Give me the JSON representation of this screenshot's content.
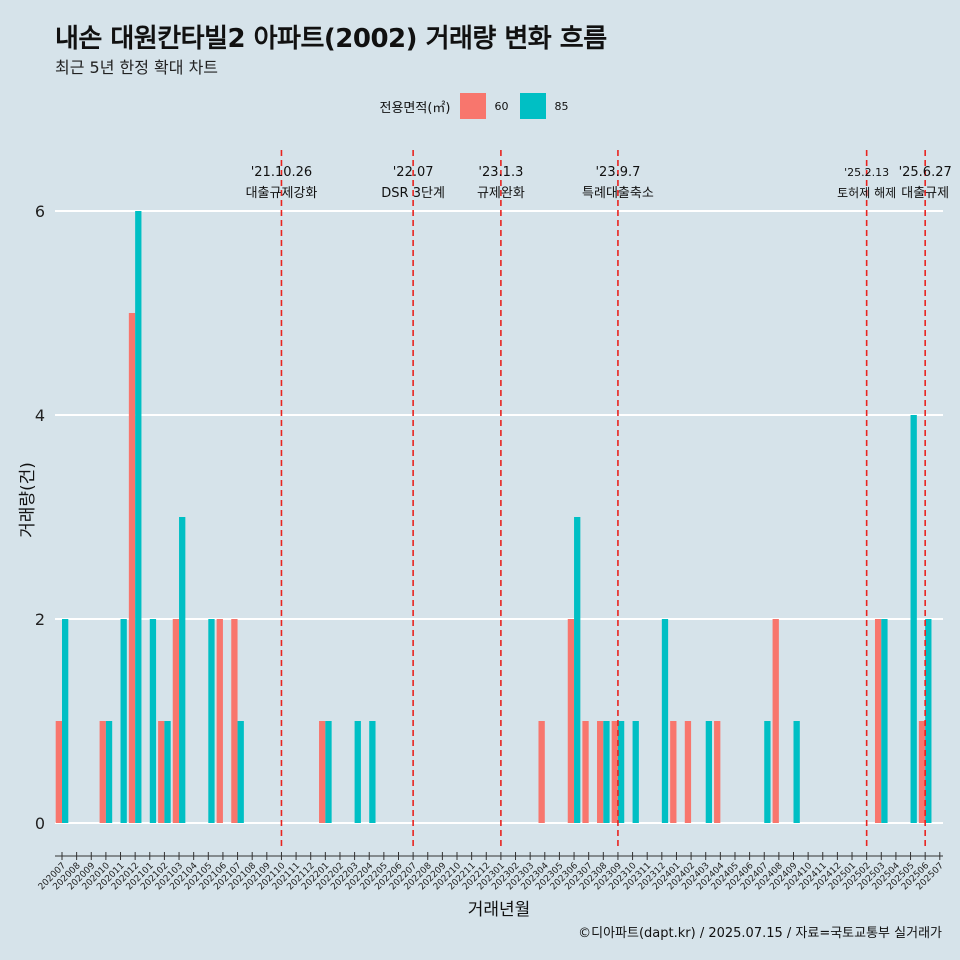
{
  "chart_data": {
    "type": "bar",
    "title": "내손 대원칸타빌2 아파트(2002) 거래량 변화 흐름",
    "subtitle": "최근 5년 한정 확대 차트",
    "xlabel": "거래년월",
    "ylabel": "거래량(건)",
    "ylim": [
      0,
      6
    ],
    "yticks": [
      "0",
      "2",
      "4",
      "6"
    ],
    "legend_title": "전용면적(㎡)",
    "legend_position": "top",
    "categories": [
      "202007",
      "202008",
      "202009",
      "202010",
      "202011",
      "202012",
      "202101",
      "202102",
      "202103",
      "202104",
      "202105",
      "202106",
      "202107",
      "202108",
      "202109",
      "202110",
      "202111",
      "202112",
      "202201",
      "202202",
      "202203",
      "202204",
      "202205",
      "202206",
      "202207",
      "202208",
      "202209",
      "202210",
      "202211",
      "202212",
      "202301",
      "202302",
      "202303",
      "202304",
      "202305",
      "202306",
      "202307",
      "202308",
      "202309",
      "202310",
      "202311",
      "202312",
      "202401",
      "202402",
      "202403",
      "202404",
      "202405",
      "202406",
      "202407",
      "202408",
      "202409",
      "202410",
      "202411",
      "202412",
      "202501",
      "202502",
      "202503",
      "202504",
      "202505",
      "202506",
      "202507"
    ],
    "series": [
      {
        "name": "60",
        "color": "#f8766d",
        "values": [
          1,
          0,
          0,
          1,
          0,
          5,
          0,
          1,
          2,
          0,
          0,
          2,
          2,
          0,
          0,
          0,
          0,
          0,
          1,
          0,
          0,
          0,
          0,
          0,
          0,
          0,
          0,
          0,
          0,
          0,
          0,
          0,
          0,
          1,
          0,
          2,
          1,
          1,
          1,
          0,
          0,
          0,
          1,
          1,
          0,
          1,
          0,
          0,
          0,
          2,
          0,
          0,
          0,
          0,
          0,
          0,
          2,
          0,
          0,
          1,
          0
        ]
      },
      {
        "name": "85",
        "color": "#00bfc4",
        "values": [
          2,
          0,
          0,
          1,
          2,
          6,
          2,
          1,
          3,
          0,
          2,
          0,
          1,
          0,
          0,
          0,
          0,
          0,
          1,
          0,
          1,
          1,
          0,
          0,
          0,
          0,
          0,
          0,
          0,
          0,
          0,
          0,
          0,
          0,
          0,
          3,
          0,
          1,
          1,
          1,
          0,
          2,
          0,
          0,
          1,
          0,
          0,
          0,
          1,
          0,
          1,
          0,
          0,
          0,
          0,
          0,
          2,
          0,
          4,
          2,
          0
        ]
      }
    ],
    "annotations": [
      {
        "category": "202110",
        "date": "'21.10.26",
        "label": "대출규제강화"
      },
      {
        "category": "202207",
        "date": "'22.07",
        "label": "DSR 3단계"
      },
      {
        "category": "202301",
        "date": "'23.1.3",
        "label": "규제완화"
      },
      {
        "category": "202309",
        "date": "'23.9.7",
        "label": "특례대출축소"
      },
      {
        "category": "202502",
        "date": "'25.2.13",
        "label": "토허제 해제"
      },
      {
        "category": "202506",
        "date": "'25.6.27",
        "label": "대출규제"
      }
    ],
    "grid": true
  },
  "caption": "©디아파트(dapt.kr) / 2025.07.15 / 자료=국토교통부 실거래가"
}
